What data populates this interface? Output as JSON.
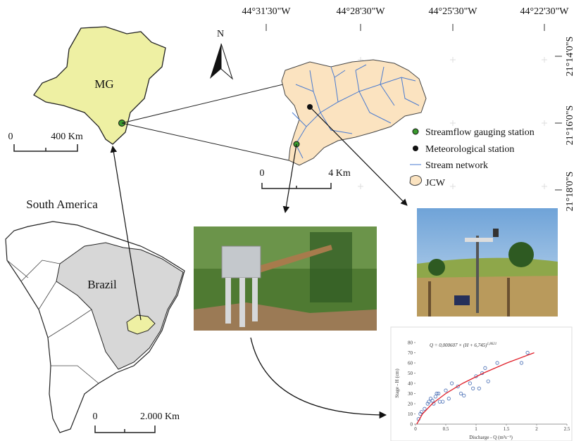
{
  "graticule": {
    "longitudes": [
      "44°31'30\"W",
      "44°28'30\"W",
      "44°25'30\"W",
      "44°22'30\"W"
    ],
    "latitudes": [
      "21°14'0\"S",
      "21°16'0\"S",
      "21°18'0\"S"
    ]
  },
  "north_arrow": "N",
  "state_map": {
    "label": "MG",
    "scale_start": "0",
    "scale_end": "400 Km"
  },
  "continent_map": {
    "title": "South America",
    "country": "Brazil",
    "scale_start": "0",
    "scale_end": "2.000 Km"
  },
  "watershed_map": {
    "scale_start": "0",
    "scale_end": "4 Km",
    "legend": [
      "Streamflow gauging station",
      "Meteorological station",
      "Stream network",
      "JCW"
    ]
  },
  "chart_data": {
    "type": "scatter",
    "equation": "Q = 0,000607 × (H + 6,745)",
    "exponent": "1,8621",
    "x_label": "Discharge - Q (m³s⁻¹)",
    "y_label": "Stage - H (cm)",
    "x": [
      0.05,
      0.08,
      0.1,
      0.15,
      0.2,
      0.22,
      0.25,
      0.28,
      0.3,
      0.33,
      0.35,
      0.38,
      0.4,
      0.45,
      0.5,
      0.55,
      0.6,
      0.7,
      0.75,
      0.8,
      0.9,
      0.95,
      1.0,
      1.05,
      1.1,
      1.15,
      1.2,
      1.35,
      1.75,
      1.85
    ],
    "values": [
      5,
      10,
      12,
      15,
      20,
      22,
      25,
      23,
      20,
      27,
      30,
      30,
      22,
      22,
      33,
      25,
      40,
      37,
      30,
      28,
      40,
      35,
      47,
      35,
      50,
      55,
      42,
      60,
      60,
      70
    ],
    "fit": {
      "x": [
        0.021,
        0.115,
        0.276,
        0.5,
        0.78,
        1.12,
        1.51,
        1.96
      ],
      "values": [
        0,
        10,
        20,
        30,
        40,
        50,
        60,
        70
      ]
    },
    "color": "#4a6fb5",
    "fit_color": "#e0202a",
    "xlim": [
      0,
      2.5
    ],
    "ylim": [
      0,
      80
    ],
    "xticks": [
      0,
      0.5,
      1,
      1.5,
      2,
      2.5
    ],
    "yticks": [
      0,
      10,
      20,
      30,
      40,
      50,
      60,
      70,
      80
    ]
  }
}
